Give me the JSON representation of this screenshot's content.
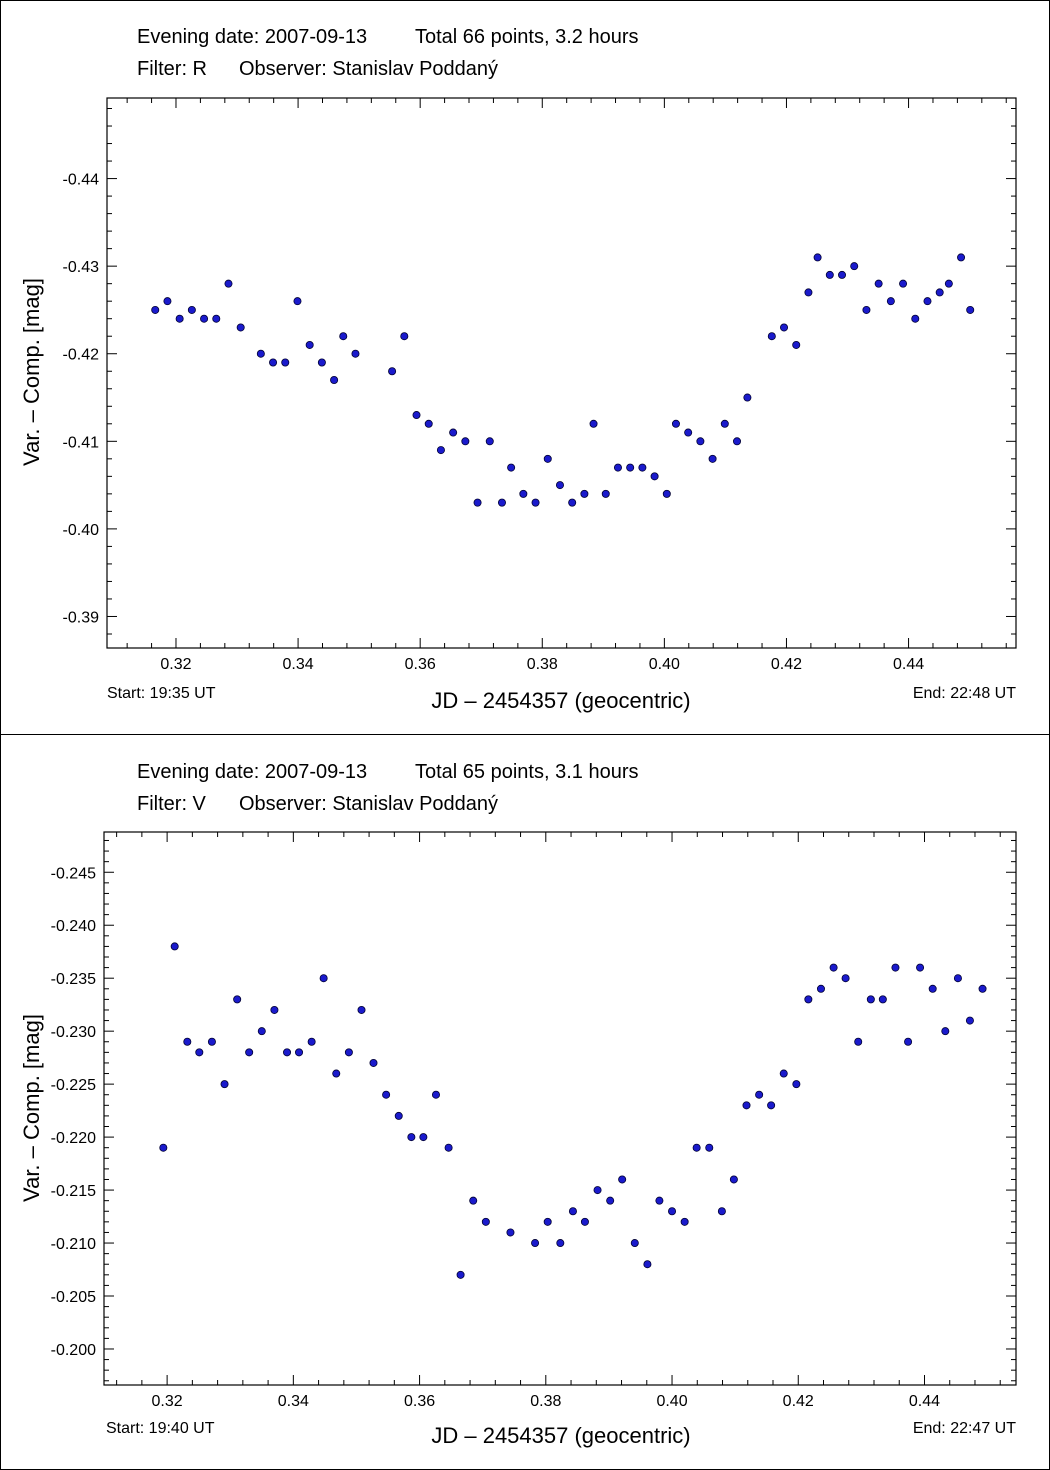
{
  "chart_data": [
    {
      "type": "scatter",
      "header": {
        "evening_date": "Evening date: 2007-09-13",
        "total": "Total 66 points, 3.2 hours",
        "filter": "Filter: R",
        "observer": "Observer: Stanislav Poddaný"
      },
      "xlabel": "JD – 2454357  (geocentric)",
      "ylabel": "Var. – Comp. [mag]",
      "start_label": "Start: 19:35 UT",
      "end_label": "End: 22:48 UT",
      "xlim": [
        0.3087,
        0.4576
      ],
      "ylim": [
        -0.4492,
        -0.3864
      ],
      "y_inverted_display": true,
      "xticks": [
        "0.32",
        "0.34",
        "0.36",
        "0.38",
        "0.40",
        "0.42",
        "0.44"
      ],
      "yticks": [
        "-0.44",
        "-0.43",
        "-0.42",
        "-0.41",
        "-0.40",
        "-0.39"
      ],
      "series": [
        {
          "name": "R",
          "color": "#1a1acc",
          "x": [
            0.3166,
            0.3186,
            0.3206,
            0.3226,
            0.3246,
            0.3266,
            0.3286,
            0.3306,
            0.3339,
            0.3359,
            0.3379,
            0.3399,
            0.3419,
            0.3439,
            0.3459,
            0.3474,
            0.3494,
            0.3554,
            0.3574,
            0.3594,
            0.3614,
            0.3634,
            0.3654,
            0.3674,
            0.3694,
            0.3714,
            0.3734,
            0.3749,
            0.3769,
            0.3789,
            0.3809,
            0.3829,
            0.3849,
            0.3869,
            0.3884,
            0.3904,
            0.3924,
            0.3944,
            0.3964,
            0.3984,
            0.4004,
            0.4019,
            0.4039,
            0.4059,
            0.4079,
            0.4099,
            0.4119,
            0.4136,
            0.4176,
            0.4196,
            0.4216,
            0.4236,
            0.4251,
            0.4271,
            0.4291,
            0.4311,
            0.4331,
            0.4351,
            0.4371,
            0.4391,
            0.4411,
            0.4431,
            0.4451,
            0.4466,
            0.4486,
            0.4501
          ],
          "y": [
            -0.425,
            -0.426,
            -0.424,
            -0.425,
            -0.424,
            -0.424,
            -0.428,
            -0.423,
            -0.42,
            -0.419,
            -0.419,
            -0.426,
            -0.421,
            -0.419,
            -0.417,
            -0.422,
            -0.42,
            -0.418,
            -0.422,
            -0.413,
            -0.412,
            -0.409,
            -0.411,
            -0.41,
            -0.403,
            -0.41,
            -0.403,
            -0.407,
            -0.404,
            -0.403,
            -0.408,
            -0.405,
            -0.403,
            -0.404,
            -0.412,
            -0.404,
            -0.407,
            -0.407,
            -0.407,
            -0.406,
            -0.404,
            -0.412,
            -0.411,
            -0.41,
            -0.408,
            -0.412,
            -0.41,
            -0.415,
            -0.422,
            -0.423,
            -0.421,
            -0.427,
            -0.431,
            -0.429,
            -0.429,
            -0.43,
            -0.425,
            -0.428,
            -0.426,
            -0.428,
            -0.424,
            -0.426,
            -0.427,
            -0.428,
            -0.431,
            -0.425
          ]
        }
      ]
    },
    {
      "type": "scatter",
      "header": {
        "evening_date": "Evening date: 2007-09-13",
        "total": "Total 65 points, 3.1 hours",
        "filter": "Filter: V",
        "observer": "Observer: Stanislav Poddaný"
      },
      "xlabel": "JD – 2454357  (geocentric)",
      "ylabel": "Var. – Comp. [mag]",
      "start_label": "Start: 19:40 UT",
      "end_label": "End: 22:47 UT",
      "xlim": [
        0.31,
        0.4545
      ],
      "ylim": [
        -0.2488,
        -0.1966
      ],
      "y_inverted_display": true,
      "xticks": [
        "0.32",
        "0.34",
        "0.36",
        "0.38",
        "0.40",
        "0.42",
        "0.44"
      ],
      "yticks": [
        "-0.245",
        "-0.240",
        "-0.235",
        "-0.230",
        "-0.225",
        "-0.220",
        "-0.215",
        "-0.210",
        "-0.205",
        "-0.200"
      ],
      "series": [
        {
          "name": "V",
          "color": "#1a1acc",
          "x": [
            0.3194,
            0.3212,
            0.3232,
            0.3251,
            0.3271,
            0.3291,
            0.3311,
            0.333,
            0.335,
            0.337,
            0.339,
            0.3409,
            0.3429,
            0.3448,
            0.3468,
            0.3488,
            0.3508,
            0.3527,
            0.3547,
            0.3567,
            0.3587,
            0.3606,
            0.3626,
            0.3646,
            0.3665,
            0.3685,
            0.3705,
            0.3744,
            0.3783,
            0.3803,
            0.3823,
            0.3843,
            0.3862,
            0.3882,
            0.3902,
            0.3921,
            0.3941,
            0.3961,
            0.398,
            0.4,
            0.402,
            0.4039,
            0.4059,
            0.4079,
            0.4098,
            0.4118,
            0.4138,
            0.4157,
            0.4177,
            0.4197,
            0.4216,
            0.4236,
            0.4256,
            0.4275,
            0.4295,
            0.4315,
            0.4334,
            0.4354,
            0.4374,
            0.4393,
            0.4413,
            0.4433,
            0.4453,
            0.4472,
            0.4492
          ],
          "y": [
            -0.219,
            -0.238,
            -0.229,
            -0.228,
            -0.229,
            -0.225,
            -0.233,
            -0.228,
            -0.23,
            -0.232,
            -0.228,
            -0.228,
            -0.229,
            -0.235,
            -0.226,
            -0.228,
            -0.232,
            -0.227,
            -0.224,
            -0.222,
            -0.22,
            -0.22,
            -0.224,
            -0.219,
            -0.207,
            -0.214,
            -0.212,
            -0.211,
            -0.21,
            -0.212,
            -0.21,
            -0.213,
            -0.212,
            -0.215,
            -0.214,
            -0.216,
            -0.21,
            -0.208,
            -0.214,
            -0.213,
            -0.212,
            -0.219,
            -0.219,
            -0.213,
            -0.216,
            -0.223,
            -0.224,
            -0.223,
            -0.226,
            -0.225,
            -0.233,
            -0.234,
            -0.236,
            -0.235,
            -0.229,
            -0.233,
            -0.233,
            -0.236,
            -0.229,
            -0.236,
            -0.234,
            -0.23,
            -0.235,
            -0.231,
            -0.234
          ]
        }
      ]
    }
  ]
}
